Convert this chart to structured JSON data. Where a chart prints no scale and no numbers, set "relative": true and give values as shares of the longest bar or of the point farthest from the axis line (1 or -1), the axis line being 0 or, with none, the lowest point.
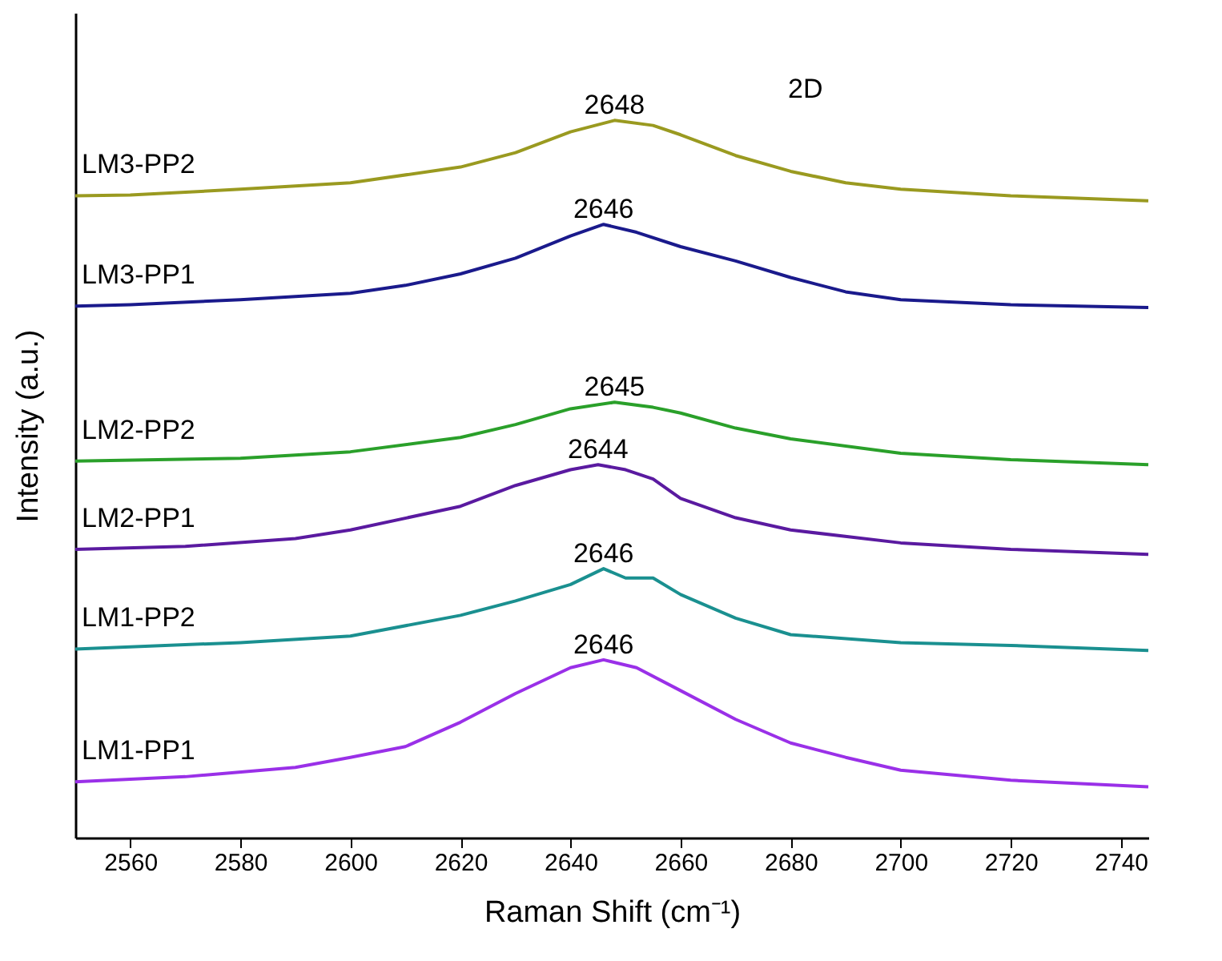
{
  "chart_data": {
    "type": "line",
    "xlabel": "Raman Shift (cm⁻¹)",
    "ylabel": "Intensity (a.u.)",
    "relative": true,
    "xlim": [
      2550,
      2745
    ],
    "xticks": [
      2560,
      2580,
      2600,
      2620,
      2640,
      2660,
      2680,
      2700,
      2720,
      2740
    ],
    "grid": false,
    "legend": false,
    "marker": "none",
    "line_style": "solid",
    "series": [
      {
        "name": "LM3-PP2",
        "color": "#9a9a20",
        "x": [
          2550,
          2560,
          2580,
          2600,
          2620,
          2630,
          2640,
          2648,
          2655,
          2660,
          2670,
          2680,
          2690,
          2700,
          2720,
          2745
        ],
        "values": [
          0.895,
          0.896,
          0.904,
          0.913,
          0.935,
          0.955,
          0.984,
          1,
          0.993,
          0.98,
          0.951,
          0.929,
          0.913,
          0.904,
          0.895,
          0.888
        ]
      },
      {
        "name": "LM3-PP1",
        "color": "#1a1a8c",
        "x": [
          2550,
          2560,
          2580,
          2600,
          2610,
          2620,
          2630,
          2640,
          2646,
          2652,
          2660,
          2670,
          2680,
          2690,
          2700,
          2720,
          2745
        ],
        "values": [
          0.741,
          0.743,
          0.75,
          0.759,
          0.77,
          0.786,
          0.808,
          0.839,
          0.855,
          0.844,
          0.824,
          0.804,
          0.781,
          0.761,
          0.75,
          0.743,
          0.739
        ]
      },
      {
        "name": "LM2-PP2",
        "color": "#2aa02a",
        "x": [
          2550,
          2580,
          2600,
          2620,
          2630,
          2640,
          2648,
          2655,
          2660,
          2670,
          2680,
          2700,
          2720,
          2745
        ],
        "values": [
          0.525,
          0.529,
          0.538,
          0.558,
          0.576,
          0.598,
          0.607,
          0.6,
          0.592,
          0.571,
          0.556,
          0.536,
          0.527,
          0.52
        ]
      },
      {
        "name": "LM2-PP1",
        "color": "#5a1aa0",
        "x": [
          2550,
          2570,
          2590,
          2600,
          2620,
          2630,
          2640,
          2645,
          2650,
          2655,
          2660,
          2670,
          2680,
          2700,
          2720,
          2745
        ],
        "values": [
          0.402,
          0.406,
          0.417,
          0.429,
          0.462,
          0.491,
          0.513,
          0.52,
          0.513,
          0.5,
          0.473,
          0.446,
          0.429,
          0.411,
          0.402,
          0.395
        ]
      },
      {
        "name": "LM1-PP2",
        "color": "#1a9090",
        "x": [
          2550,
          2580,
          2600,
          2620,
          2630,
          2640,
          2646,
          2650,
          2655,
          2660,
          2670,
          2680,
          2700,
          2720,
          2745
        ],
        "values": [
          0.263,
          0.272,
          0.281,
          0.31,
          0.33,
          0.353,
          0.375,
          0.362,
          0.362,
          0.339,
          0.306,
          0.283,
          0.272,
          0.268,
          0.261
        ]
      },
      {
        "name": "LM1-PP1",
        "color": "#9a30e8",
        "x": [
          2550,
          2570,
          2590,
          2600,
          2610,
          2620,
          2630,
          2640,
          2646,
          2652,
          2660,
          2670,
          2680,
          2690,
          2700,
          2720,
          2745
        ],
        "values": [
          0.078,
          0.085,
          0.098,
          0.112,
          0.127,
          0.161,
          0.201,
          0.237,
          0.248,
          0.237,
          0.205,
          0.165,
          0.132,
          0.112,
          0.094,
          0.08,
          0.071
        ]
      }
    ],
    "annotations": [
      {
        "text": "2648",
        "x": 2648,
        "y": 1
      },
      {
        "text": "2646",
        "x": 2646,
        "y": 0.855
      },
      {
        "text": "2645",
        "x": 2648,
        "y": 0.607
      },
      {
        "text": "2644",
        "x": 2645,
        "y": 0.52
      },
      {
        "text": "2646",
        "x": 2646,
        "y": 0.375
      },
      {
        "text": "2646",
        "x": 2646,
        "y": 0.248
      },
      "2D"
    ]
  }
}
